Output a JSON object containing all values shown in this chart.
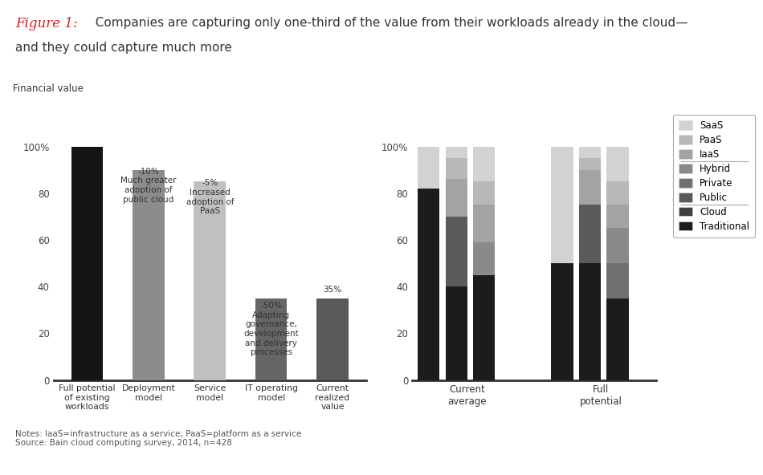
{
  "background_color": "#ffffff",
  "title_italic": "Figure 1:",
  "title_rest_line1": "  Companies are capturing only one-third of the value from their workloads already in the cloud—",
  "title_line2": "and they could capture much more",
  "fin_value_label": "Financial value",
  "notes": "Notes: IaaS=infrastructure as a service; PaaS=platform as a service\nSource: Bain cloud computing survey, 2014, n=428",
  "waterfall_categories": [
    "Full potential\nof existing\nworkloads",
    "Deployment\nmodel",
    "Service\nmodel",
    "IT operating\nmodel",
    "Current\nrealized\nvalue"
  ],
  "waterfall_heights": [
    100,
    90,
    85,
    35,
    35
  ],
  "waterfall_colors": [
    "#141414",
    "#8c8c8c",
    "#c0c0c0",
    "#666666",
    "#595959"
  ],
  "waterfall_annots": [
    {
      "xi": 1,
      "yi": 91,
      "text": "-10%\nMuch greater\nadoption of\npublic cloud",
      "va": "top"
    },
    {
      "xi": 2,
      "yi": 86,
      "text": "-5%\nIncreased\nadoption of\nPaaS",
      "va": "top"
    },
    {
      "xi": 3,
      "yi": 33.5,
      "text": "-50%\nAdapting\ngovernance,\ndevelopment\nand delivery\nprocesses",
      "va": "top"
    },
    {
      "xi": 4,
      "yi": 37,
      "text": "35%",
      "va": "bottom"
    }
  ],
  "layer_order": [
    "Traditional",
    "Cloud",
    "Public",
    "Private",
    "Hybrid",
    "IaaS",
    "PaaS",
    "SaaS"
  ],
  "layer_colors": {
    "Traditional": "#1c1c1c",
    "Cloud": "#404040",
    "Public": "#5a5a5a",
    "Private": "#717171",
    "Hybrid": "#8a8a8a",
    "IaaS": "#a3a3a3",
    "PaaS": "#b8b8b8",
    "SaaS": "#d2d2d2"
  },
  "legend_order": [
    "SaaS",
    "PaaS",
    "IaaS",
    "Hybrid",
    "Private",
    "Public",
    "Cloud",
    "Traditional"
  ],
  "legend_separators_after": [
    "IaaS",
    "Public"
  ],
  "stacked_bars": [
    {
      "group": 0,
      "bar": 0,
      "Traditional": 82,
      "Cloud": 0,
      "Public": 0,
      "Private": 0,
      "Hybrid": 0,
      "IaaS": 0,
      "PaaS": 0,
      "SaaS": 18
    },
    {
      "group": 0,
      "bar": 1,
      "Traditional": 40,
      "Cloud": 0,
      "Public": 30,
      "Private": 0,
      "Hybrid": 0,
      "IaaS": 16,
      "PaaS": 9,
      "SaaS": 5
    },
    {
      "group": 0,
      "bar": 2,
      "Traditional": 45,
      "Cloud": 0,
      "Public": 0,
      "Private": 0,
      "Hybrid": 14,
      "IaaS": 16,
      "PaaS": 10,
      "SaaS": 15
    },
    {
      "group": 1,
      "bar": 0,
      "Traditional": 50,
      "Cloud": 0,
      "Public": 0,
      "Private": 0,
      "Hybrid": 0,
      "IaaS": 0,
      "PaaS": 0,
      "SaaS": 50
    },
    {
      "group": 1,
      "bar": 1,
      "Traditional": 50,
      "Cloud": 0,
      "Public": 25,
      "Private": 0,
      "Hybrid": 0,
      "IaaS": 15,
      "PaaS": 5,
      "SaaS": 5
    },
    {
      "group": 1,
      "bar": 2,
      "Traditional": 35,
      "Cloud": 0,
      "Public": 0,
      "Private": 15,
      "Hybrid": 15,
      "IaaS": 10,
      "PaaS": 10,
      "SaaS": 15
    }
  ]
}
